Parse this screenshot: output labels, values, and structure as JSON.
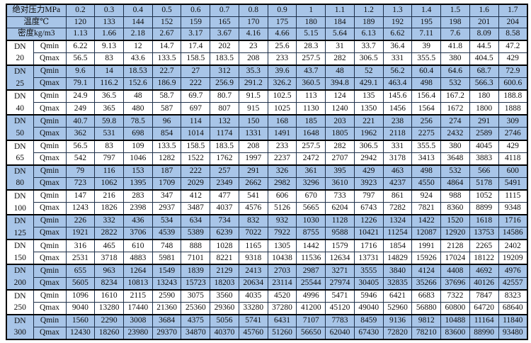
{
  "colors": {
    "header_blue": "#a8c5e8",
    "row_white": "#ffffff",
    "border_dark": "#1c2f4a",
    "outer_border": "#000000"
  },
  "table": {
    "dn_label": "DN",
    "qmin_label": "Qmin",
    "qmax_label": "Qmax",
    "header_rows": [
      {
        "name": "pressure",
        "label": "绝对压力MPa",
        "values": [
          "0.2",
          "0.3",
          "0.4",
          "0.5",
          "0.6",
          "0.7",
          "0.8",
          "0.9",
          "1",
          "1.1",
          "1.2",
          "1.3",
          "1.4",
          "1.5",
          "1.6",
          "1.7"
        ]
      },
      {
        "name": "temperature",
        "label": "温度℃",
        "values": [
          "120",
          "133",
          "144",
          "152",
          "159",
          "165",
          "170",
          "175",
          "180",
          "184",
          "189",
          "192",
          "195",
          "198",
          "201",
          "204"
        ]
      },
      {
        "name": "density",
        "label": "密度kg/m3",
        "values": [
          "1.13",
          "1.66",
          "2.18",
          "2.67",
          "3.17",
          "3.67",
          "4.16",
          "4.66",
          "5.15",
          "5.64",
          "6.13",
          "6.62",
          "7.11",
          "7.6",
          "8.09",
          "8.58"
        ]
      }
    ],
    "groups": [
      {
        "dn": "20",
        "qmin": [
          "6.22",
          "9.13",
          "12",
          "14.7",
          "17.4",
          "202",
          "23",
          "25.6",
          "28.3",
          "31",
          "33.7",
          "36.4",
          "39",
          "41.8",
          "44.5",
          "47.2"
        ],
        "qmax": [
          "56.5",
          "83",
          "43.6",
          "133.5",
          "158.5",
          "183.5",
          "208",
          "233",
          "257.5",
          "282",
          "306.5",
          "331",
          "355.5",
          "380",
          "404.5",
          "429"
        ]
      },
      {
        "dn": "25",
        "qmin": [
          "9.6",
          "14",
          "18.53",
          "22.7",
          "27",
          "312",
          "35.3",
          "39.6",
          "43.7",
          "48",
          "52",
          "56.2",
          "60.4",
          "64.6",
          "68.7",
          "72.9"
        ],
        "qmax": [
          "79.1",
          "116.2",
          "152.6",
          "186.9",
          "222",
          "256.9",
          "291.2",
          "326.2",
          "360.5",
          "394.8",
          "429.1",
          "463.4",
          "498",
          "532",
          "566.3",
          "600.6"
        ]
      },
      {
        "dn": "40",
        "qmin": [
          "24.9",
          "36.5",
          "48",
          "58.7",
          "69.7",
          "80.7",
          "91.5",
          "102.5",
          "113",
          "124",
          "135",
          "145.6",
          "156.4",
          "167.2",
          "180",
          "188.8"
        ],
        "qmax": [
          "249",
          "365",
          "480",
          "587",
          "697",
          "807",
          "915",
          "1025",
          "1130",
          "1240",
          "1350",
          "1456",
          "1564",
          "1672",
          "1800",
          "1888"
        ]
      },
      {
        "dn": "50",
        "qmin": [
          "40.7",
          "59.8",
          "78.5",
          "96",
          "114",
          "132",
          "150",
          "168",
          "185",
          "203",
          "221",
          "238",
          "256",
          "274",
          "291",
          "309"
        ],
        "qmax": [
          "362",
          "531",
          "698",
          "854",
          "1014",
          "1174",
          "1331",
          "1491",
          "1648",
          "1805",
          "1962",
          "2118",
          "2275",
          "2432",
          "2589",
          "2746"
        ]
      },
      {
        "dn": "65",
        "qmin": [
          "56.5",
          "83",
          "109",
          "133.5",
          "158.5",
          "183.5",
          "208",
          "233",
          "257.5",
          "282",
          "306.5",
          "331",
          "355.5",
          "380",
          "4045",
          "429"
        ],
        "qmax": [
          "542",
          "797",
          "1046",
          "1282",
          "1522",
          "1762",
          "1997",
          "2237",
          "2472",
          "2707",
          "2942",
          "3178",
          "3413",
          "3648",
          "3883",
          "4118"
        ]
      },
      {
        "dn": "80",
        "qmin": [
          "79",
          "116",
          "153",
          "187",
          "222",
          "257",
          "291",
          "326",
          "361",
          "395",
          "429",
          "463",
          "498",
          "532",
          "566",
          "600"
        ],
        "qmax": [
          "723",
          "1062",
          "1395",
          "1709",
          "2029",
          "2349",
          "2662",
          "2982",
          "3296",
          "3610",
          "3923",
          "4237",
          "4550",
          "4864",
          "5178",
          "5491"
        ]
      },
      {
        "dn": "100",
        "qmin": [
          "147",
          "216",
          "283",
          "347",
          "412",
          "477",
          "541",
          "606",
          "670",
          "733",
          "797",
          "861",
          "924",
          "988",
          "1052",
          "1115"
        ],
        "qmax": [
          "1243",
          "1826",
          "2398",
          "2937",
          "3487",
          "4037",
          "4576",
          "5126",
          "5665",
          "6204",
          "6743",
          "7282",
          "7821",
          "8360",
          "8899",
          "9348"
        ]
      },
      {
        "dn": "125",
        "qmin": [
          "226",
          "332",
          "436",
          "534",
          "634",
          "734",
          "832",
          "932",
          "1030",
          "1128",
          "1226",
          "1324",
          "1422",
          "1520",
          "1618",
          "1716"
        ],
        "qmax": [
          "1921",
          "2822",
          "3706",
          "4539",
          "5389",
          "6239",
          "7022",
          "7922",
          "8755",
          "9588",
          "10421",
          "11254",
          "12087",
          "12920",
          "13753",
          "14586"
        ]
      },
      {
        "dn": "150",
        "qmin": [
          "316",
          "465",
          "610",
          "748",
          "888",
          "1028",
          "1165",
          "1305",
          "1442",
          "1579",
          "1716",
          "1854",
          "1991",
          "2128",
          "2265",
          "2402"
        ],
        "qmax": [
          "2531",
          "3718",
          "4883",
          "5981",
          "7101",
          "8221",
          "9318",
          "10438",
          "11536",
          "12634",
          "13731",
          "14829",
          "15926",
          "17024",
          "18122",
          "19209"
        ]
      },
      {
        "dn": "200",
        "qmin": [
          "655",
          "963",
          "1264",
          "1549",
          "1839",
          "2129",
          "2413",
          "2703",
          "2987",
          "3271",
          "3555",
          "3840",
          "4124",
          "4408",
          "4692",
          "4976"
        ],
        "qmax": [
          "5605",
          "8234",
          "10813",
          "13243",
          "15723",
          "18203",
          "20634",
          "23114",
          "25544",
          "27974",
          "30405",
          "32835",
          "35266",
          "37696",
          "40126",
          "42557"
        ]
      },
      {
        "dn": "250",
        "qmin": [
          "1096",
          "1610",
          "2115",
          "2590",
          "3075",
          "3560",
          "4035",
          "4520",
          "4996",
          "5471",
          "5946",
          "6421",
          "6683",
          "7322",
          "7847",
          "8323"
        ],
        "qmax": [
          "9040",
          "13280",
          "17440",
          "21360",
          "25360",
          "29360",
          "33280",
          "37280",
          "41200",
          "45120",
          "49040",
          "52960",
          "56880",
          "60800",
          "64720",
          "68640"
        ]
      },
      {
        "dn": "300",
        "qmin": [
          "1560",
          "2290",
          "3008",
          "3684",
          "4375",
          "5056",
          "5741",
          "6431",
          "7107",
          "7783",
          "8459",
          "9136",
          "9812",
          "10488",
          "11164",
          "11840"
        ],
        "qmax": [
          "12430",
          "18260",
          "23980",
          "29370",
          "34870",
          "40370",
          "45760",
          "51260",
          "56650",
          "62040",
          "67430",
          "72820",
          "78210",
          "83600",
          "88990",
          "93480"
        ]
      }
    ]
  }
}
